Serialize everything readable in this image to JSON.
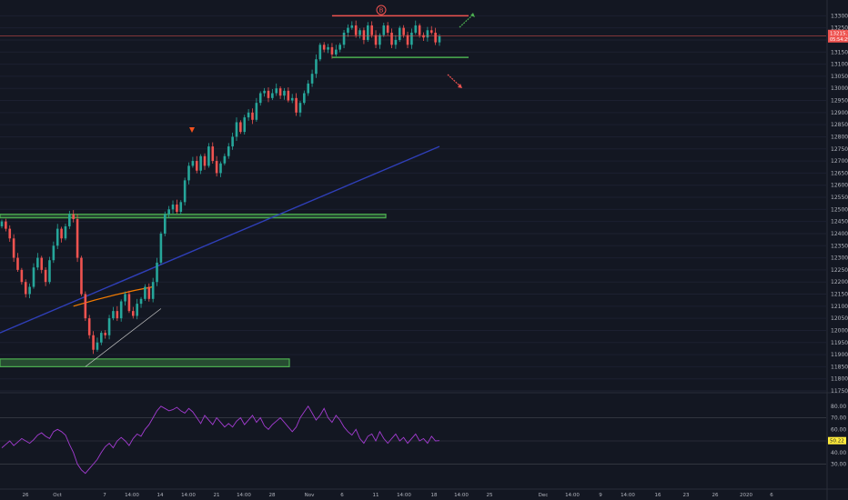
{
  "chart_data": [
    {
      "type": "candlestick",
      "panel": "price",
      "ylim": [
        11750,
        13350
      ],
      "y_ticks": [
        "11750.0",
        "11800.0",
        "11850.0",
        "11900.0",
        "11950.0",
        "12000.0",
        "12050.0",
        "12100.0",
        "12150.0",
        "12200.0",
        "12250.0",
        "12300.0",
        "12350.0",
        "12400.0",
        "12450.0",
        "12500.0",
        "12550.0",
        "12600.0",
        "12650.0",
        "12700.0",
        "12750.0",
        "12800.0",
        "12850.0",
        "12900.0",
        "12950.0",
        "13000.0",
        "13050.0",
        "13100.0",
        "13150.0",
        "13200.0",
        "13250.0",
        "13300.0"
      ],
      "x_ticks": [
        "26",
        "Oct",
        "7",
        "14:00",
        "14",
        "14:00",
        "21",
        "14:00",
        "28",
        "Nov",
        "6",
        "11",
        "14:00",
        "18",
        "14:00",
        "25",
        "Dec",
        "14:00",
        "9",
        "14:00",
        "16",
        "23",
        "26",
        "2020",
        "6"
      ],
      "current_price": "13215.7",
      "countdown": "05:54:29",
      "up_color": "#26a69a",
      "down_color": "#ef5350",
      "close_series": [
        12450,
        12420,
        12380,
        12300,
        12250,
        12200,
        12150,
        12180,
        12260,
        12300,
        12250,
        12200,
        12290,
        12350,
        12420,
        12380,
        12430,
        12480,
        12460,
        12300,
        12150,
        12050,
        11980,
        11920,
        11950,
        11990,
        11980,
        12050,
        12080,
        12050,
        12120,
        12150,
        12080,
        12060,
        12110,
        12130,
        12180,
        12130,
        12200,
        12280,
        12400,
        12480,
        12500,
        12520,
        12490,
        12530,
        12620,
        12680,
        12700,
        12660,
        12720,
        12680,
        12760,
        12700,
        12650,
        12690,
        12720,
        12760,
        12800,
        12860,
        12820,
        12880,
        12900,
        12870,
        12940,
        12980,
        12990,
        12960,
        12980,
        13000,
        12970,
        12990,
        12950,
        12960,
        12900,
        12940,
        12980,
        13020,
        13060,
        13120,
        13180,
        13160,
        13170,
        13140,
        13160,
        13180,
        13230,
        13250,
        13260,
        13220,
        13240,
        13200,
        13260,
        13220,
        13180,
        13220,
        13260,
        13230,
        13180,
        13200,
        13250,
        13220,
        13180,
        13230,
        13260,
        13220,
        13210,
        13240,
        13230,
        13190,
        13216
      ],
      "support_zones": [
        {
          "top": 12465,
          "bottom": 12480,
          "color": "#4caf50"
        },
        {
          "top": 11850,
          "bottom": 11882,
          "color": "#4caf50"
        }
      ],
      "range_box": {
        "high": 13300,
        "low": 13128
      },
      "label": "B",
      "moving_averages": [
        {
          "color": "#2f3fb8",
          "from": [
            0,
            11990
          ],
          "to": [
            110,
            12760
          ]
        },
        {
          "color": "#f57c00",
          "from": [
            18,
            12100
          ],
          "to": [
            38,
            12180
          ]
        }
      ],
      "arrow_up_color": "#4caf50",
      "arrow_down_color": "#ef5350"
    },
    {
      "type": "line",
      "panel": "rsi",
      "ylim": [
        10,
        90
      ],
      "y_ticks": [
        "80.00",
        "70.00",
        "60.00",
        "50.00",
        "40.00",
        "30.00"
      ],
      "levels": [
        70,
        30
      ],
      "current_value": "50.22",
      "line_color": "#a33cd1",
      "values": [
        44,
        47,
        50,
        46,
        49,
        52,
        50,
        48,
        51,
        55,
        57,
        54,
        52,
        58,
        60,
        58,
        55,
        47,
        40,
        30,
        25,
        22,
        26,
        30,
        34,
        40,
        45,
        48,
        44,
        50,
        53,
        50,
        46,
        52,
        56,
        54,
        60,
        64,
        70,
        76,
        80,
        78,
        76,
        77,
        79,
        76,
        74,
        78,
        75,
        70,
        65,
        72,
        68,
        64,
        70,
        66,
        62,
        65,
        62,
        67,
        70,
        64,
        68,
        72,
        66,
        70,
        63,
        60,
        64,
        67,
        70,
        66,
        62,
        58,
        62,
        70,
        75,
        80,
        74,
        68,
        72,
        78,
        70,
        66,
        72,
        68,
        62,
        58,
        55,
        60,
        52,
        48,
        54,
        56,
        50,
        58,
        52,
        48,
        52,
        56,
        50,
        53,
        48,
        52,
        56,
        50,
        52,
        48,
        54,
        50,
        50.22
      ]
    }
  ]
}
